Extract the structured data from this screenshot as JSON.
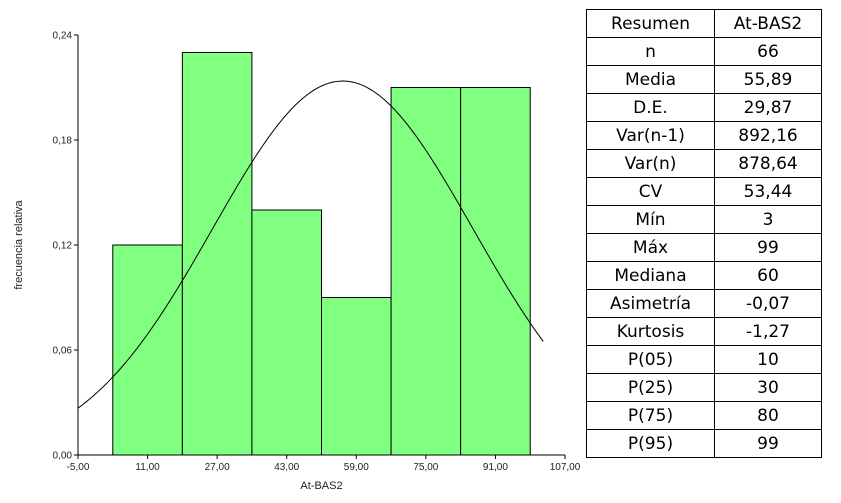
{
  "chart_data": {
    "type": "bar",
    "subtype": "histogram",
    "xlabel": "At-BAS2",
    "ylabel": "frecuencia relativa",
    "xlim": [
      -5,
      107
    ],
    "ylim": [
      0,
      0.24
    ],
    "x_ticks": [
      "-5,00",
      "11,00",
      "27,00",
      "43,00",
      "59,00",
      "75,00",
      "91,00",
      "107,00"
    ],
    "x_tick_values": [
      -5,
      11,
      27,
      43,
      59,
      75,
      91,
      107
    ],
    "y_ticks": [
      "0,00",
      "0,06",
      "0,12",
      "0,18",
      "0,24"
    ],
    "y_tick_values": [
      0,
      0.06,
      0.12,
      0.18,
      0.24
    ],
    "bins": [
      {
        "x0": 3,
        "x1": 19,
        "value": 0.12
      },
      {
        "x0": 19,
        "x1": 35,
        "value": 0.23
      },
      {
        "x0": 35,
        "x1": 51,
        "value": 0.14
      },
      {
        "x0": 51,
        "x1": 67,
        "value": 0.09
      },
      {
        "x0": 67,
        "x1": 83,
        "value": 0.21
      },
      {
        "x0": 83,
        "x1": 99,
        "value": 0.21
      }
    ],
    "bar_color": "#80ff80",
    "normal_curve": {
      "mean": 55.89,
      "sd": 29.87,
      "bin_width": 16
    },
    "grid": false,
    "legend": "none"
  },
  "stats_table": {
    "headers": [
      "Resumen",
      "At-BAS2"
    ],
    "rows": [
      [
        "n",
        "66"
      ],
      [
        "Media",
        "55,89"
      ],
      [
        "D.E.",
        "29,87"
      ],
      [
        "Var(n-1)",
        "892,16"
      ],
      [
        "Var(n)",
        "878,64"
      ],
      [
        "CV",
        "53,44"
      ],
      [
        "Mín",
        "3"
      ],
      [
        "Máx",
        "99"
      ],
      [
        "Mediana",
        "60"
      ],
      [
        "Asimetría",
        "-0,07"
      ],
      [
        "Kurtosis",
        "-1,27"
      ],
      [
        "P(05)",
        "10"
      ],
      [
        "P(25)",
        "30"
      ],
      [
        "P(75)",
        "80"
      ],
      [
        "P(95)",
        "99"
      ]
    ]
  }
}
